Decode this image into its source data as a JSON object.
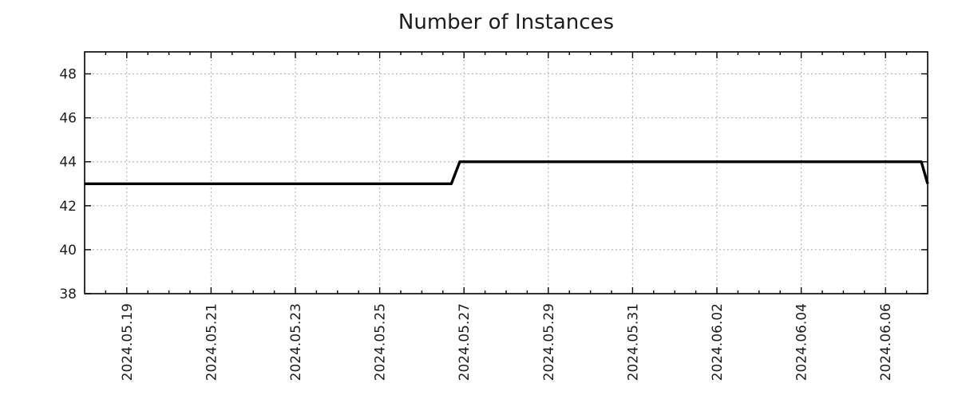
{
  "figure": {
    "background": "#ffffff"
  },
  "chart_data": {
    "type": "line",
    "title": "Number of Instances",
    "xlabel": "",
    "ylabel": "",
    "ylim": [
      38,
      49
    ],
    "yticks": [
      38,
      40,
      42,
      44,
      46,
      48
    ],
    "xlim": [
      "2024-05-18 00:00",
      "2024-06-07 00:00"
    ],
    "xlim_days": [
      0,
      20
    ],
    "minor_xtick_interval_days": 0.5,
    "grid": true,
    "grid_style": "dotted",
    "legend": "none",
    "xticks": [
      {
        "label": "2024.05.19",
        "day": 1
      },
      {
        "label": "2024.05.21",
        "day": 3
      },
      {
        "label": "2024.05.23",
        "day": 5
      },
      {
        "label": "2024.05.25",
        "day": 7
      },
      {
        "label": "2024.05.27",
        "day": 9
      },
      {
        "label": "2024.05.29",
        "day": 11
      },
      {
        "label": "2024.05.31",
        "day": 13
      },
      {
        "label": "2024.06.02",
        "day": 15
      },
      {
        "label": "2024.06.04",
        "day": 17
      },
      {
        "label": "2024.06.06",
        "day": 19
      }
    ],
    "series": [
      {
        "name": "Number of Instances",
        "color": "#000000",
        "line_width": 3.4,
        "points": [
          {
            "date": "2024-05-18 00:00",
            "day": 0,
            "value": 43
          },
          {
            "date": "2024-05-26 17:00",
            "day": 8.7,
            "value": 43
          },
          {
            "date": "2024-05-26 21:30",
            "day": 8.9,
            "value": 44
          },
          {
            "date": "2024-06-06 20:00",
            "day": 19.85,
            "value": 44
          },
          {
            "date": "2024-06-07 00:00",
            "day": 20,
            "value": 43
          }
        ]
      }
    ],
    "colors": {
      "line": "#000000",
      "grid": "#b0b0b0",
      "axis": "#000000",
      "text": "#1c1c1c",
      "background": "#ffffff"
    }
  }
}
